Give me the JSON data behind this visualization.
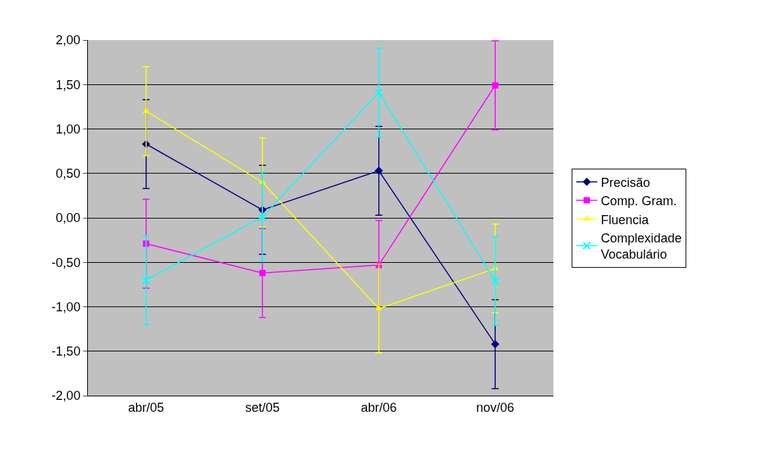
{
  "chart_data": {
    "type": "line",
    "categories": [
      "abr/05",
      "set/05",
      "abr/06",
      "nov/06"
    ],
    "series": [
      {
        "name": "Precisão",
        "color": "#000080",
        "marker": "diamond",
        "values": [
          0.83,
          0.09,
          0.53,
          -1.42
        ],
        "errors": [
          0.5,
          0.5,
          0.5,
          0.5
        ]
      },
      {
        "name": "Comp. Gram.",
        "color": "#ff00ff",
        "marker": "square",
        "values": [
          -0.29,
          -0.62,
          -0.53,
          1.49
        ],
        "errors": [
          0.5,
          0.5,
          0.5,
          0.5
        ]
      },
      {
        "name": "Fluencia",
        "color": "#ffff00",
        "marker": "triangle",
        "values": [
          1.2,
          0.4,
          -1.02,
          -0.57
        ],
        "errors": [
          0.5,
          0.5,
          0.5,
          0.5
        ]
      },
      {
        "name": "Complexidade Vocabulário",
        "color": "#00ffff",
        "marker": "cross",
        "values": [
          -0.7,
          0.01,
          1.41,
          -0.71
        ],
        "errors": [
          0.5,
          0.5,
          0.5,
          0.5
        ]
      }
    ],
    "ylim": [
      -2,
      2
    ],
    "yticks": [
      {
        "value": -2,
        "label": "-2,00"
      },
      {
        "value": -1.5,
        "label": "-1,50"
      },
      {
        "value": -1,
        "label": "-1,00"
      },
      {
        "value": -0.5,
        "label": "-0,50"
      },
      {
        "value": 0,
        "label": "0,00"
      },
      {
        "value": 0.5,
        "label": "0,50"
      },
      {
        "value": 1,
        "label": "1,00"
      },
      {
        "value": 1.5,
        "label": "1,50"
      },
      {
        "value": 2,
        "label": "2,00"
      }
    ],
    "grid": "y",
    "legend": "right",
    "line_style": "solid"
  }
}
